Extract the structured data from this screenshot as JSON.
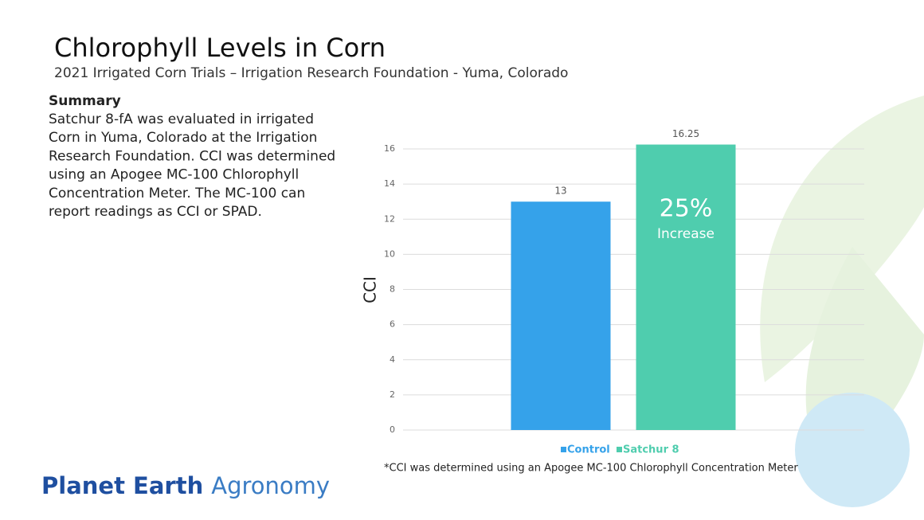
{
  "slide": {
    "title": "Chlorophyll Levels in Corn",
    "subtitle": "2021 Irrigated Corn Trials – Irrigation Research Foundation - Yuma, Colorado",
    "summary_heading": "Summary",
    "summary_lines": [
      "Satchur 8-fA was evaluated in irrigated",
      "Corn in Yuma, Colorado at the Irrigation",
      "Research Foundation. CCI was determined",
      "using an Apogee MC-100 Chlorophyll",
      "Concentration Meter. The MC-100 can",
      "report readings as CCI or SPAD."
    ],
    "brand_bold": "Planet Earth",
    "brand_light": "Agronomy"
  },
  "chart_data": {
    "type": "bar",
    "y_label": "CCI",
    "categories": [
      "Control",
      "Satchur 8"
    ],
    "values": [
      13,
      16.25
    ],
    "colors": [
      "#35a2ea",
      "#4fcdae"
    ],
    "ylim": [
      0,
      18
    ],
    "yticks": [
      0,
      2,
      4,
      6,
      8,
      10,
      12,
      14,
      16
    ],
    "grid": true,
    "annotation": "25%",
    "annotation_sub": "Increase",
    "footnote": "*CCI was determined using an Apogee MC-100  Chlorophyll Concentration Meter"
  }
}
